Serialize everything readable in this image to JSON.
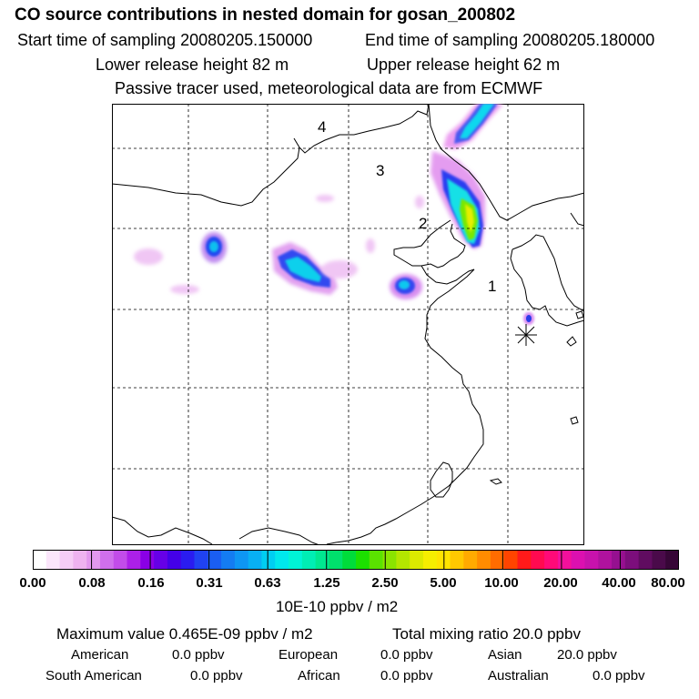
{
  "header": {
    "title": "CO  source contributions in nested domain for gosan_200802",
    "start_time": "Start time of sampling 20080205.150000",
    "end_time": "End time of sampling 20080205.180000",
    "lower_height": "Lower release height   82 m",
    "upper_height": "Upper release height   62 m",
    "note": "Passive tracer used, meteorological data are from ECMWF"
  },
  "map": {
    "region_labels": [
      "1",
      "2",
      "3",
      "4"
    ],
    "receptor_marker": "asterisk-receptor"
  },
  "colorbar": {
    "unit": "10E-10 ppbv / m2",
    "ticks": [
      "0.00",
      "0.08",
      "0.16",
      "0.31",
      "0.63",
      "1.25",
      "2.50",
      "5.00",
      "10.00",
      "20.00",
      "40.00",
      "80.00"
    ],
    "colors": [
      "#ffffff",
      "#fbe6fb",
      "#f5cdf6",
      "#eeb3f0",
      "#e298ee",
      "#cf6fec",
      "#c24ce9",
      "#ac20e8",
      "#8a00e6",
      "#6600e6",
      "#4400e8",
      "#2a1cf0",
      "#2042f2",
      "#1a5ef2",
      "#147cf2",
      "#0e96f4",
      "#08b0f4",
      "#00cef2",
      "#00e8ec",
      "#00f4d6",
      "#00eeb4",
      "#00e890",
      "#00e06c",
      "#00dc3a",
      "#1ce000",
      "#5ae200",
      "#8ae400",
      "#b4e600",
      "#dcea00",
      "#f6ee00",
      "#ffe400",
      "#ffc800",
      "#ffaa00",
      "#ff8c00",
      "#ff6c00",
      "#ff4400",
      "#ff1a1a",
      "#ff0a50",
      "#ff0a78",
      "#f2109c",
      "#dc10b0",
      "#c812ac",
      "#b0129e",
      "#961090",
      "#7c0e7c",
      "#600c60",
      "#4a0a4a",
      "#360636"
    ]
  },
  "footer": {
    "max_label": "Maximum value  0.465E-09 ppbv / m2",
    "total_label": "Total mixing ratio       20.0 ppbv",
    "american": "American",
    "american_val": "0.0 ppbv",
    "european": "European",
    "european_val": "0.0 ppbv",
    "asian": "Asian",
    "asian_val": "20.0 ppbv",
    "south_american": "South American",
    "south_american_val": "0.0 ppbv",
    "african": "African",
    "african_val": "0.0 ppbv",
    "australian": "Australian",
    "australian_val": "0.0 ppbv"
  }
}
